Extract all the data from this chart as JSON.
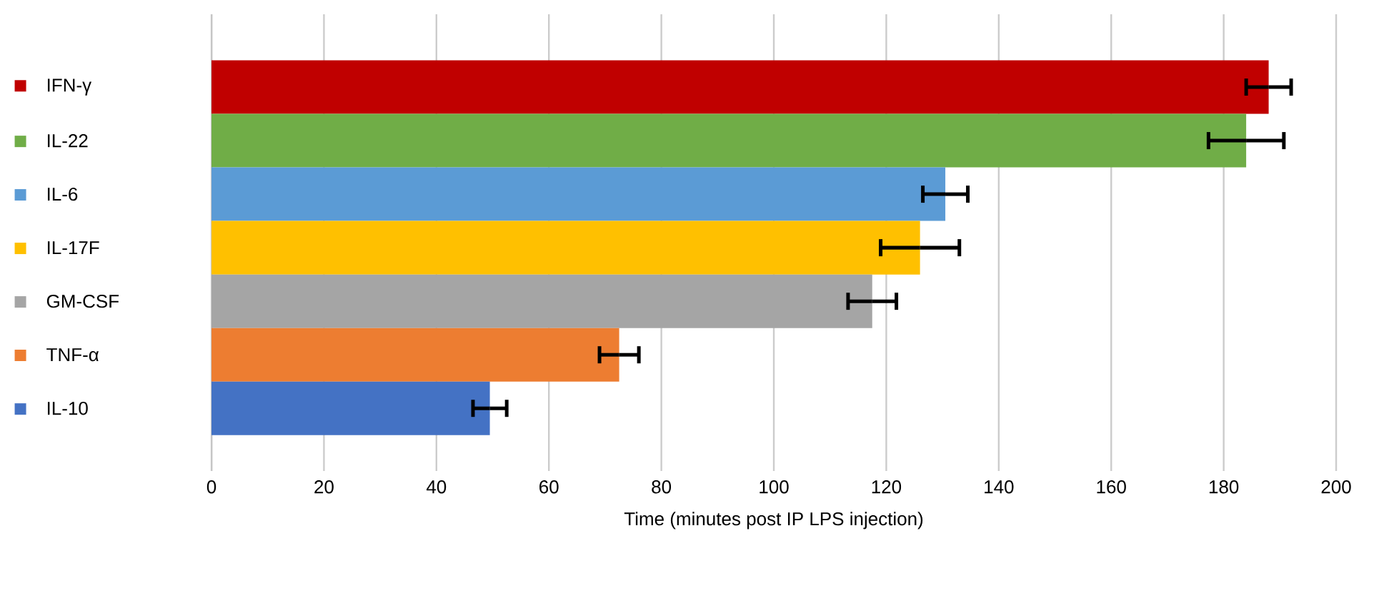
{
  "chart_data": {
    "type": "bar",
    "orientation": "horizontal",
    "xlabel": "Time (minutes post IP LPS injection)",
    "categories": [
      "IFN-γ",
      "IL-22",
      "IL-6",
      "IL-17F",
      "GM-CSF",
      "TNF-α",
      "IL-10"
    ],
    "values": [
      188,
      184,
      130.5,
      126,
      117.5,
      72.5,
      49.5
    ],
    "errors": [
      4,
      6.7,
      4,
      7,
      4.3,
      3.5,
      3
    ],
    "colors": [
      "#c00000",
      "#70ad47",
      "#5b9bd5",
      "#ffc000",
      "#a5a5a5",
      "#ed7d31",
      "#4472c4"
    ],
    "xlim": [
      0,
      200
    ],
    "xticks": [
      0,
      20,
      40,
      60,
      80,
      100,
      120,
      140,
      160,
      180,
      200
    ],
    "grid": "x"
  }
}
